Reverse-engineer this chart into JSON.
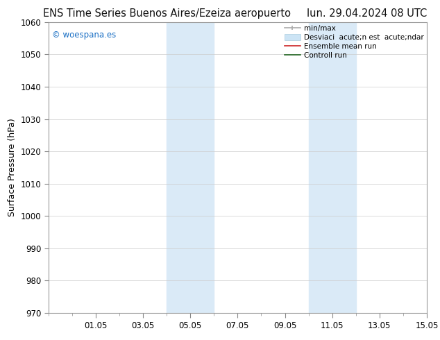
{
  "title_left": "ENS Time Series Buenos Aires/Ezeiza aeropuerto",
  "title_right": "lun. 29.04.2024 08 UTC",
  "ylabel": "Surface Pressure (hPa)",
  "ylim": [
    970,
    1060
  ],
  "yticks": [
    970,
    980,
    990,
    1000,
    1010,
    1020,
    1030,
    1040,
    1050,
    1060
  ],
  "xlim": [
    0,
    16
  ],
  "xtick_labels": [
    "01.05",
    "03.05",
    "05.05",
    "07.05",
    "09.05",
    "11.05",
    "13.05",
    "15.05"
  ],
  "xtick_positions": [
    2,
    4,
    6,
    8,
    10,
    12,
    14,
    16
  ],
  "shaded_bands": [
    {
      "x_start": 5,
      "x_end": 7,
      "color": "#daeaf7"
    },
    {
      "x_start": 11,
      "x_end": 13,
      "color": "#daeaf7"
    }
  ],
  "watermark_text": "© woespana.es",
  "watermark_color": "#1a6fc4",
  "legend_label_minmax": "min/max",
  "legend_label_std": "Desviaci  acute;n est  acute;ndar",
  "legend_label_ens": "Ensemble mean run",
  "legend_label_ctrl": "Controll run",
  "color_minmax": "#aaaaaa",
  "color_std": "#cce4f5",
  "color_ens": "#cc2222",
  "color_ctrl": "#226622",
  "background_color": "#ffffff",
  "grid_color": "#cccccc",
  "spine_color": "#999999",
  "title_fontsize": 10.5,
  "tick_fontsize": 8.5,
  "ylabel_fontsize": 9,
  "legend_fontsize": 7.5,
  "watermark_fontsize": 8.5
}
